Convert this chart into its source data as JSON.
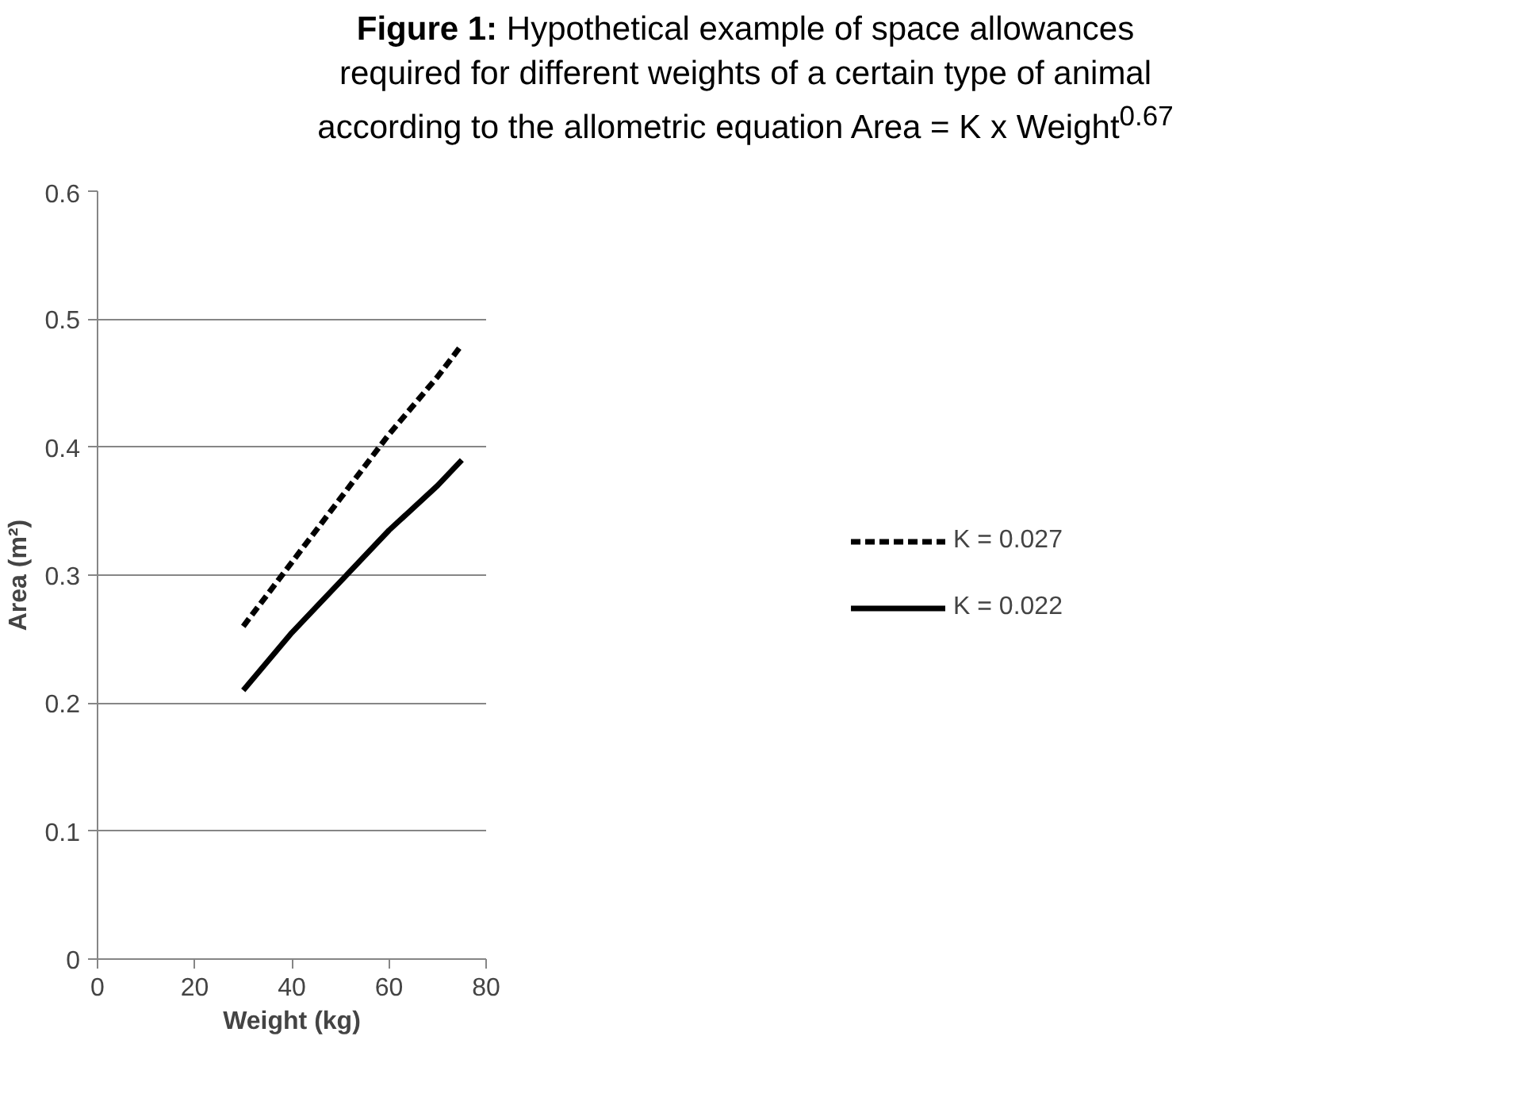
{
  "chart_data": {
    "type": "line",
    "title": "Figure 1: Hypothetical example of space allowances\nrequired for different weights of a certain type of animal\naccording to the allometric equation Area = K x Weight$^{0.67}$",
    "xlabel": "Weight (kg)",
    "ylabel": "Area (m²)",
    "x": [
      30,
      40,
      50,
      60,
      70,
      75
    ],
    "series": [
      {
        "name": "K = 0.027",
        "color": "#000000",
        "line_style": "dashed",
        "values": [
          0.26,
          0.31,
          0.36,
          0.41,
          0.455,
          0.48
        ]
      },
      {
        "name": "K = 0.022",
        "color": "#000000",
        "line_style": "solid",
        "values": [
          0.21,
          0.255,
          0.295,
          0.335,
          0.37,
          0.39
        ]
      }
    ],
    "xlim": [
      0,
      80
    ],
    "xticks": [
      0,
      20,
      40,
      60,
      80
    ],
    "ylim": [
      0,
      0.6
    ],
    "yticks": [
      {
        "value": 0,
        "label": "0"
      },
      0.1,
      0.2,
      0.3,
      0.4,
      0.5,
      0.6
    ],
    "grid": "y",
    "legend": "right",
    "marker": "none"
  }
}
